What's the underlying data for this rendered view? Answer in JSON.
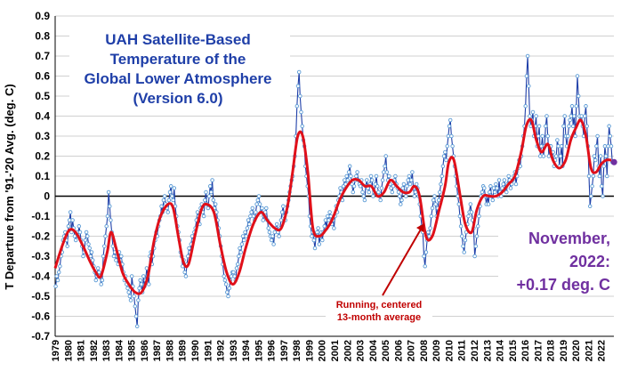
{
  "chart_data": {
    "type": "line",
    "title_lines": [
      "UAH Satellite-Based",
      "Temperature of the",
      "Global Lower Atmosphere",
      "(Version 6.0)"
    ],
    "ylabel": "T Departure from '91-'20 Avg. (deg. C)",
    "xlabel": "",
    "ylim": [
      -0.7,
      0.9
    ],
    "yticks": [
      "0.9",
      "0.8",
      "0.7",
      "0.6",
      "0.5",
      "0.4",
      "0.3",
      "0.2",
      "0.1",
      "0",
      "-0.1",
      "-0.2",
      "-0.3",
      "-0.4",
      "-0.5",
      "-0.6",
      "-0.7"
    ],
    "x_tick_labels": [
      "1979",
      "1980",
      "1981",
      "1982",
      "1983",
      "1984",
      "1985",
      "1986",
      "1987",
      "1988",
      "1989",
      "1990",
      "1991",
      "1992",
      "1993",
      "1994",
      "1995",
      "1996",
      "1997",
      "1998",
      "1999",
      "2000",
      "2001",
      "2002",
      "2003",
      "2004",
      "2005",
      "2006",
      "2007",
      "2008",
      "2009",
      "2010",
      "2011",
      "2012",
      "2013",
      "2014",
      "2015",
      "2016",
      "2017",
      "2018",
      "2019",
      "2020",
      "2021",
      "2022"
    ],
    "x_start_year": 1979,
    "annotation_lines": [
      "November,",
      "2022:",
      "+0.17 deg. C"
    ],
    "average_label_lines": [
      "Running, centered",
      "13-month average"
    ],
    "last_value": 0.17,
    "series": [
      {
        "role": "monthly",
        "color": "#1f3fa8",
        "marker_color": "#5b9bd5",
        "yearly_values": [
          [
            -0.45,
            -0.4,
            -0.42,
            -0.38,
            -0.35,
            -0.3,
            -0.28,
            -0.22,
            -0.2,
            -0.18,
            -0.22,
            -0.25
          ],
          [
            -0.15,
            -0.12,
            -0.08,
            -0.18,
            -0.12,
            -0.16,
            -0.2,
            -0.22,
            -0.18,
            -0.2,
            -0.15,
            -0.18
          ],
          [
            -0.22,
            -0.25,
            -0.3,
            -0.28,
            -0.22,
            -0.18,
            -0.2,
            -0.24,
            -0.26,
            -0.3,
            -0.28,
            -0.32
          ],
          [
            -0.35,
            -0.38,
            -0.42,
            -0.4,
            -0.36,
            -0.38,
            -0.4,
            -0.44,
            -0.42,
            -0.3,
            -0.25,
            -0.2
          ],
          [
            -0.15,
            -0.1,
            0.02,
            -0.05,
            -0.12,
            -0.18,
            -0.25,
            -0.3,
            -0.28,
            -0.32,
            -0.3,
            -0.34
          ],
          [
            -0.28,
            -0.32,
            -0.3,
            -0.34,
            -0.38,
            -0.42,
            -0.4,
            -0.44,
            -0.46,
            -0.48,
            -0.5,
            -0.52
          ],
          [
            -0.4,
            -0.45,
            -0.5,
            -0.55,
            -0.6,
            -0.65,
            -0.52,
            -0.46,
            -0.42,
            -0.44,
            -0.48,
            -0.4
          ],
          [
            -0.45,
            -0.42,
            -0.36,
            -0.4,
            -0.44,
            -0.3,
            -0.28,
            -0.34,
            -0.3,
            -0.26,
            -0.22,
            -0.18
          ],
          [
            -0.2,
            -0.15,
            -0.12,
            -0.1,
            -0.05,
            -0.08,
            -0.02,
            0.0,
            -0.04,
            -0.06,
            -0.08,
            -0.02
          ],
          [
            0.02,
            0.05,
            0.0,
            -0.02,
            0.04,
            -0.05,
            -0.1,
            -0.15,
            -0.18,
            -0.22,
            -0.28,
            -0.3
          ],
          [
            -0.35,
            -0.32,
            -0.38,
            -0.4,
            -0.34,
            -0.3,
            -0.26,
            -0.28,
            -0.24,
            -0.2,
            -0.22,
            -0.18
          ],
          [
            -0.16,
            -0.12,
            -0.08,
            -0.1,
            -0.14,
            -0.06,
            -0.04,
            -0.08,
            -0.1,
            -0.02,
            0.02,
            -0.04
          ],
          [
            -0.06,
            0.0,
            0.05,
            0.02,
            0.08,
            -0.02,
            -0.06,
            -0.04,
            -0.08,
            -0.12,
            -0.16,
            -0.2
          ],
          [
            -0.25,
            -0.3,
            -0.34,
            -0.4,
            -0.42,
            -0.44,
            -0.48,
            -0.5,
            -0.46,
            -0.42,
            -0.4,
            -0.38
          ],
          [
            -0.38,
            -0.4,
            -0.42,
            -0.36,
            -0.34,
            -0.3,
            -0.26,
            -0.28,
            -0.24,
            -0.2,
            -0.22,
            -0.18
          ],
          [
            -0.2,
            -0.16,
            -0.12,
            -0.14,
            -0.1,
            -0.08,
            -0.06,
            -0.1,
            -0.12,
            -0.08,
            -0.04,
            -0.02
          ],
          [
            0.0,
            -0.04,
            -0.08,
            -0.06,
            -0.12,
            -0.1,
            -0.08,
            -0.06,
            -0.12,
            -0.16,
            -0.18,
            -0.2
          ],
          [
            -0.22,
            -0.2,
            -0.24,
            -0.18,
            -0.16,
            -0.14,
            -0.18,
            -0.2,
            -0.16,
            -0.12,
            -0.08,
            -0.05
          ],
          [
            -0.1,
            -0.12,
            -0.08,
            -0.05,
            -0.02,
            0.02,
            0.05,
            0.08,
            0.1,
            0.15,
            0.2,
            0.3
          ],
          [
            0.45,
            0.55,
            0.62,
            0.5,
            0.42,
            0.35,
            0.28,
            0.25,
            0.15,
            0.1,
            0.05,
            0.0
          ],
          [
            -0.1,
            -0.15,
            -0.2,
            -0.18,
            -0.22,
            -0.26,
            -0.2,
            -0.18,
            -0.16,
            -0.24,
            -0.2,
            -0.18
          ],
          [
            -0.22,
            -0.18,
            -0.15,
            -0.12,
            -0.16,
            -0.1,
            -0.12,
            -0.08,
            -0.1,
            -0.14,
            -0.12,
            -0.16
          ],
          [
            -0.1,
            -0.05,
            -0.08,
            -0.02,
            0.0,
            0.04,
            0.02,
            -0.02,
            0.05,
            0.08,
            0.06,
            0.1
          ],
          [
            0.08,
            0.12,
            0.15,
            0.1,
            0.06,
            0.02,
            0.05,
            0.08,
            0.1,
            0.12,
            0.08,
            0.06
          ],
          [
            0.05,
            0.08,
            0.02,
            0.0,
            -0.02,
            0.05,
            0.08,
            0.04,
            0.02,
            0.06,
            0.1,
            0.08
          ],
          [
            0.0,
            0.02,
            0.06,
            0.1,
            0.05,
            0.02,
            0.0,
            -0.02,
            0.04,
            0.08,
            0.12,
            0.15
          ],
          [
            0.2,
            0.12,
            0.08,
            0.1,
            0.06,
            0.04,
            0.02,
            0.05,
            0.08,
            0.1,
            0.06,
            0.04
          ],
          [
            0.02,
            0.0,
            -0.04,
            -0.02,
            0.04,
            0.06,
            0.02,
            0.0,
            0.05,
            0.08,
            0.1,
            0.06
          ],
          [
            0.08,
            0.12,
            0.04,
            0.0,
            0.02,
            0.06,
            0.04,
            0.0,
            -0.04,
            -0.1,
            -0.15,
            -0.18
          ],
          [
            -0.3,
            -0.35,
            -0.28,
            -0.22,
            -0.18,
            -0.2,
            -0.16,
            -0.1,
            -0.06,
            -0.02,
            0.0,
            -0.04
          ],
          [
            -0.1,
            -0.06,
            -0.02,
            0.02,
            0.06,
            0.1,
            0.15,
            0.2,
            0.22,
            0.18,
            0.25,
            0.3
          ],
          [
            0.35,
            0.38,
            0.3,
            0.25,
            0.2,
            0.15,
            0.1,
            0.05,
            0.0,
            -0.04,
            -0.1,
            -0.15
          ],
          [
            -0.2,
            -0.25,
            -0.28,
            -0.22,
            -0.18,
            -0.14,
            -0.1,
            -0.08,
            -0.04,
            -0.08,
            -0.12,
            -0.16
          ],
          [
            -0.3,
            -0.25,
            -0.2,
            -0.15,
            -0.1,
            -0.05,
            0.0,
            0.02,
            0.05,
            0.04,
            0.0,
            -0.04
          ],
          [
            0.0,
            -0.04,
            0.02,
            0.05,
            0.0,
            -0.02,
            0.04,
            0.02,
            0.06,
            0.04,
            0.0,
            0.08
          ],
          [
            0.02,
            0.0,
            0.04,
            0.06,
            0.08,
            0.04,
            0.02,
            0.06,
            0.1,
            0.08,
            0.04,
            0.06
          ],
          [
            0.08,
            0.1,
            0.12,
            0.06,
            0.1,
            0.14,
            0.18,
            0.15,
            0.2,
            0.25,
            0.3,
            0.35
          ],
          [
            0.45,
            0.6,
            0.7,
            0.55,
            0.4,
            0.35,
            0.38,
            0.42,
            0.3,
            0.35,
            0.4,
            0.25
          ],
          [
            0.3,
            0.35,
            0.2,
            0.25,
            0.3,
            0.2,
            0.25,
            0.35,
            0.4,
            0.3,
            0.2,
            0.25
          ],
          [
            0.25,
            0.2,
            0.22,
            0.15,
            0.18,
            0.2,
            0.28,
            0.25,
            0.15,
            0.2,
            0.25,
            0.15
          ],
          [
            0.35,
            0.4,
            0.3,
            0.25,
            0.3,
            0.35,
            0.38,
            0.4,
            0.45,
            0.35,
            0.4,
            0.3
          ],
          [
            0.45,
            0.6,
            0.5,
            0.4,
            0.38,
            0.4,
            0.35,
            0.3,
            0.4,
            0.45,
            0.35,
            0.25
          ],
          [
            0.1,
            -0.05,
            0.0,
            0.05,
            0.1,
            0.2,
            0.18,
            0.25,
            0.3,
            0.15,
            0.1,
            0.2
          ],
          [
            0.05,
            0.0,
            0.15,
            0.25,
            0.2,
            0.1,
            0.25,
            0.35,
            0.3,
            0.25,
            0.17
          ]
        ]
      },
      {
        "role": "running-13-month-average",
        "color": "#e0101a",
        "knots": [
          [
            1979.0,
            -0.36
          ],
          [
            1979.6,
            -0.24
          ],
          [
            1980.1,
            -0.17
          ],
          [
            1980.6,
            -0.18
          ],
          [
            1981.2,
            -0.25
          ],
          [
            1981.7,
            -0.32
          ],
          [
            1982.2,
            -0.38
          ],
          [
            1982.6,
            -0.4
          ],
          [
            1983.1,
            -0.28
          ],
          [
            1983.4,
            -0.18
          ],
          [
            1983.8,
            -0.26
          ],
          [
            1984.3,
            -0.38
          ],
          [
            1984.8,
            -0.44
          ],
          [
            1985.3,
            -0.48
          ],
          [
            1985.8,
            -0.48
          ],
          [
            1986.3,
            -0.4
          ],
          [
            1986.8,
            -0.22
          ],
          [
            1987.3,
            -0.1
          ],
          [
            1987.9,
            -0.04
          ],
          [
            1988.3,
            -0.06
          ],
          [
            1988.7,
            -0.2
          ],
          [
            1989.1,
            -0.33
          ],
          [
            1989.5,
            -0.34
          ],
          [
            1990.0,
            -0.2
          ],
          [
            1990.5,
            -0.07
          ],
          [
            1990.9,
            -0.04
          ],
          [
            1991.5,
            -0.08
          ],
          [
            1992.0,
            -0.24
          ],
          [
            1992.5,
            -0.38
          ],
          [
            1993.0,
            -0.44
          ],
          [
            1993.5,
            -0.38
          ],
          [
            1994.0,
            -0.26
          ],
          [
            1994.6,
            -0.14
          ],
          [
            1995.2,
            -0.08
          ],
          [
            1995.7,
            -0.12
          ],
          [
            1996.3,
            -0.16
          ],
          [
            1996.8,
            -0.16
          ],
          [
            1997.3,
            -0.05
          ],
          [
            1997.7,
            0.12
          ],
          [
            1998.1,
            0.3
          ],
          [
            1998.5,
            0.3
          ],
          [
            1998.9,
            0.12
          ],
          [
            1999.3,
            -0.16
          ],
          [
            1999.8,
            -0.2
          ],
          [
            2000.3,
            -0.17
          ],
          [
            2000.8,
            -0.12
          ],
          [
            2001.4,
            -0.02
          ],
          [
            2001.9,
            0.04
          ],
          [
            2002.4,
            0.08
          ],
          [
            2002.9,
            0.08
          ],
          [
            2003.4,
            0.05
          ],
          [
            2003.9,
            0.05
          ],
          [
            2004.4,
            0.0
          ],
          [
            2004.9,
            0.02
          ],
          [
            2005.4,
            0.08
          ],
          [
            2005.9,
            0.05
          ],
          [
            2006.4,
            0.02
          ],
          [
            2006.9,
            0.02
          ],
          [
            2007.3,
            0.05
          ],
          [
            2007.7,
            0.0
          ],
          [
            2008.2,
            -0.2
          ],
          [
            2008.7,
            -0.2
          ],
          [
            2009.2,
            -0.08
          ],
          [
            2009.7,
            0.05
          ],
          [
            2010.0,
            0.17
          ],
          [
            2010.4,
            0.18
          ],
          [
            2010.9,
            0.0
          ],
          [
            2011.3,
            -0.14
          ],
          [
            2011.8,
            -0.18
          ],
          [
            2012.2,
            -0.07
          ],
          [
            2012.7,
            0.0
          ],
          [
            2013.2,
            0.0
          ],
          [
            2013.7,
            0.0
          ],
          [
            2014.2,
            0.02
          ],
          [
            2014.7,
            0.06
          ],
          [
            2015.2,
            0.1
          ],
          [
            2015.7,
            0.22
          ],
          [
            2016.1,
            0.35
          ],
          [
            2016.5,
            0.38
          ],
          [
            2016.9,
            0.28
          ],
          [
            2017.3,
            0.22
          ],
          [
            2017.8,
            0.26
          ],
          [
            2018.2,
            0.18
          ],
          [
            2018.7,
            0.14
          ],
          [
            2019.2,
            0.18
          ],
          [
            2019.6,
            0.28
          ],
          [
            2020.0,
            0.34
          ],
          [
            2020.4,
            0.38
          ],
          [
            2020.8,
            0.3
          ],
          [
            2021.2,
            0.14
          ],
          [
            2021.6,
            0.12
          ],
          [
            2022.0,
            0.16
          ],
          [
            2022.4,
            0.18
          ],
          [
            2022.8,
            0.18
          ]
        ]
      }
    ]
  }
}
